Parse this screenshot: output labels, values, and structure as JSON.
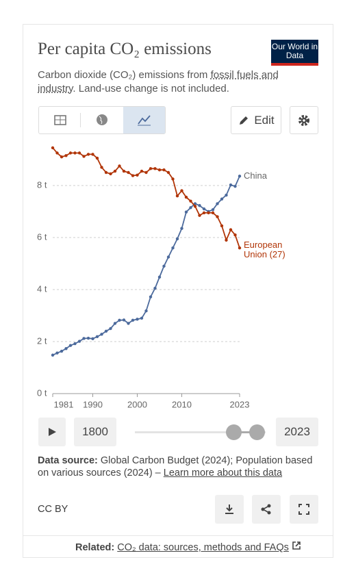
{
  "header": {
    "title": "Per capita CO₂ emissions",
    "subtitle_text": "Carbon dioxide (CO₂) emissions from ",
    "subtitle_link": "fossil fuels and industry",
    "subtitle_rest": ". Land-use change is not included.",
    "logo": "Our World in Data"
  },
  "controls": {
    "edit": "Edit",
    "start": "1800",
    "end": "2023"
  },
  "chart_data": {
    "type": "line",
    "x": [
      1981,
      1982,
      1983,
      1984,
      1985,
      1986,
      1987,
      1988,
      1989,
      1990,
      1991,
      1992,
      1993,
      1994,
      1995,
      1996,
      1997,
      1998,
      1999,
      2000,
      2001,
      2002,
      2003,
      2004,
      2005,
      2006,
      2007,
      2008,
      2009,
      2010,
      2011,
      2012,
      2013,
      2014,
      2015,
      2016,
      2017,
      2018,
      2019,
      2020,
      2021,
      2022,
      2023
    ],
    "series": [
      {
        "name": "China",
        "color": "#4c6a9c",
        "values": [
          1.48,
          1.56,
          1.63,
          1.73,
          1.85,
          1.92,
          2.01,
          2.12,
          2.13,
          2.11,
          2.19,
          2.28,
          2.4,
          2.5,
          2.7,
          2.82,
          2.83,
          2.7,
          2.82,
          2.86,
          2.9,
          3.18,
          3.72,
          4.05,
          4.48,
          4.9,
          5.25,
          5.6,
          5.95,
          6.35,
          6.98,
          7.15,
          7.3,
          7.23,
          7.1,
          7.0,
          7.07,
          7.3,
          7.48,
          7.63,
          8.02,
          7.97,
          8.36
        ]
      },
      {
        "name": "European Union (27)",
        "color": "#b13507",
        "values": [
          9.45,
          9.25,
          9.1,
          9.15,
          9.25,
          9.25,
          9.25,
          9.12,
          9.2,
          9.2,
          9.05,
          8.7,
          8.5,
          8.45,
          8.55,
          8.75,
          8.55,
          8.5,
          8.38,
          8.4,
          8.55,
          8.5,
          8.65,
          8.65,
          8.6,
          8.6,
          8.5,
          8.25,
          7.6,
          7.8,
          7.55,
          7.4,
          7.2,
          6.85,
          6.95,
          6.95,
          6.95,
          6.8,
          6.45,
          5.9,
          6.3,
          6.1,
          5.6
        ]
      }
    ],
    "xlim": [
      1981,
      2023
    ],
    "xticks": [
      1981,
      1990,
      2000,
      2010,
      2023
    ],
    "ylim": [
      0,
      9.5
    ],
    "yticks": [
      {
        "value": 0,
        "label": "0 t"
      },
      {
        "value": 2,
        "label": "2 t"
      },
      {
        "value": 4,
        "label": "4 t"
      },
      {
        "value": 6,
        "label": "6 t"
      },
      {
        "value": 8,
        "label": "8 t"
      }
    ],
    "grid": true
  },
  "footer": {
    "source_label": "Data source:",
    "source_text": "Global Carbon Budget (2024); Population based on various sources (2024) – ",
    "source_link": "Learn more about this data",
    "license": "CC BY",
    "related_label": "Related:",
    "related_link": "CO₂ data: sources, methods and FAQs"
  }
}
